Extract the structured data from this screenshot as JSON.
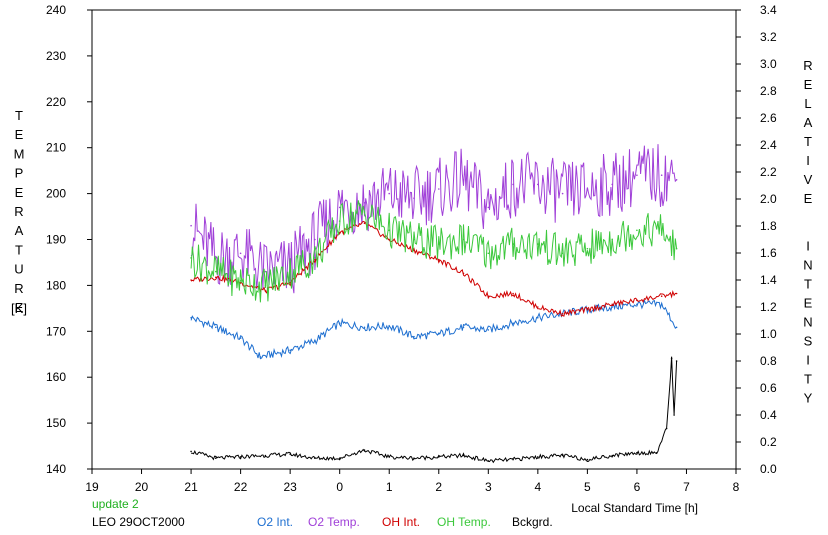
{
  "chart_data": {
    "type": "line",
    "xlabel": "Local Standard Time [h]",
    "x_tick_labels": [
      "19",
      "20",
      "21",
      "22",
      "23",
      "0",
      "1",
      "2",
      "3",
      "4",
      "5",
      "6",
      "7",
      "8"
    ],
    "y_left_label": "TEMPERATURE",
    "y_left_unit": "[K]",
    "y_left_ticks": [
      140,
      150,
      160,
      170,
      180,
      190,
      200,
      210,
      220,
      230,
      240
    ],
    "ylim_left": [
      140,
      240
    ],
    "y_right_label": "RELATIVE INTENSITY",
    "y_right_ticks": [
      "0.0",
      "0.2",
      "0.4",
      "0.6",
      "0.8",
      "1.0",
      "1.2",
      "1.4",
      "1.6",
      "1.8",
      "2.0",
      "2.2",
      "2.4",
      "2.6",
      "2.8",
      "3.0",
      "3.2",
      "3.4"
    ],
    "ylim_right": [
      0,
      3.4
    ],
    "xlim": [
      19,
      32
    ],
    "grid": false,
    "legend_placement": "bottom",
    "update_text": "update 2",
    "station_text": "LEO 29OCT2000",
    "colors": {
      "o2int": "#1e6fd0",
      "o2temp": "#a040d8",
      "ohint": "#d00000",
      "ohtemp": "#3cc83c",
      "bck": "#000000",
      "update": "#20b020"
    },
    "series": [
      {
        "name": "O2 Int.",
        "axis": "right",
        "color": "#1e6fd0",
        "x": [
          21.0,
          21.5,
          22.0,
          22.4,
          23.0,
          23.5,
          24.0,
          24.5,
          25.0,
          25.5,
          26.0,
          26.5,
          27.0,
          27.5,
          28.0,
          28.5,
          29.0,
          29.5,
          30.0,
          30.5,
          30.8
        ],
        "values": [
          1.12,
          1.05,
          0.97,
          0.83,
          0.88,
          0.95,
          1.08,
          1.05,
          1.06,
          0.98,
          1.0,
          1.05,
          1.03,
          1.08,
          1.12,
          1.15,
          1.18,
          1.2,
          1.22,
          1.22,
          1.05
        ]
      },
      {
        "name": "O2 Temp.",
        "axis": "left",
        "color": "#a040d8",
        "x": [
          21.0,
          21.5,
          22.0,
          22.5,
          23.0,
          23.5,
          24.0,
          24.5,
          25.0,
          25.5,
          26.0,
          26.5,
          27.0,
          27.5,
          28.0,
          28.5,
          29.0,
          29.5,
          30.0,
          30.5,
          30.8
        ],
        "values": [
          193,
          186,
          187,
          183,
          184,
          190,
          197,
          198,
          200,
          199,
          201,
          203,
          197,
          202,
          202,
          200,
          201,
          202,
          204,
          204,
          203
        ]
      },
      {
        "name": "OH Int.",
        "axis": "right",
        "color": "#d00000",
        "x": [
          21.0,
          21.5,
          22.0,
          22.5,
          23.0,
          23.5,
          24.0,
          24.5,
          25.0,
          25.5,
          26.0,
          26.5,
          27.0,
          27.5,
          28.0,
          28.5,
          29.0,
          29.5,
          30.0,
          30.5,
          30.8
        ],
        "values": [
          1.4,
          1.42,
          1.38,
          1.32,
          1.38,
          1.55,
          1.75,
          1.82,
          1.7,
          1.62,
          1.55,
          1.45,
          1.28,
          1.3,
          1.2,
          1.15,
          1.18,
          1.22,
          1.25,
          1.28,
          1.3
        ]
      },
      {
        "name": "OH Temp.",
        "axis": "left",
        "color": "#3cc83c",
        "x": [
          21.0,
          21.5,
          22.0,
          22.5,
          23.0,
          23.5,
          24.0,
          24.5,
          25.0,
          25.5,
          26.0,
          26.5,
          27.0,
          27.5,
          28.0,
          28.5,
          29.0,
          29.5,
          30.0,
          30.5,
          30.8
        ],
        "values": [
          186,
          183,
          181,
          180,
          183,
          186,
          194,
          196,
          192,
          190,
          189,
          190,
          187,
          189,
          189,
          187,
          188,
          190,
          192,
          192,
          188
        ]
      },
      {
        "name": "Bckgrd.",
        "axis": "right",
        "color": "#000000",
        "x": [
          21.0,
          21.5,
          22.0,
          22.5,
          23.0,
          23.5,
          24.0,
          24.5,
          25.0,
          25.5,
          26.0,
          26.5,
          27.0,
          27.5,
          28.0,
          28.5,
          29.0,
          29.5,
          30.0,
          30.4,
          30.6,
          30.7,
          30.75,
          30.8
        ],
        "values": [
          0.13,
          0.08,
          0.09,
          0.1,
          0.11,
          0.08,
          0.08,
          0.14,
          0.09,
          0.08,
          0.09,
          0.1,
          0.06,
          0.07,
          0.09,
          0.1,
          0.07,
          0.1,
          0.12,
          0.12,
          0.3,
          0.82,
          0.4,
          0.8
        ]
      }
    ]
  }
}
